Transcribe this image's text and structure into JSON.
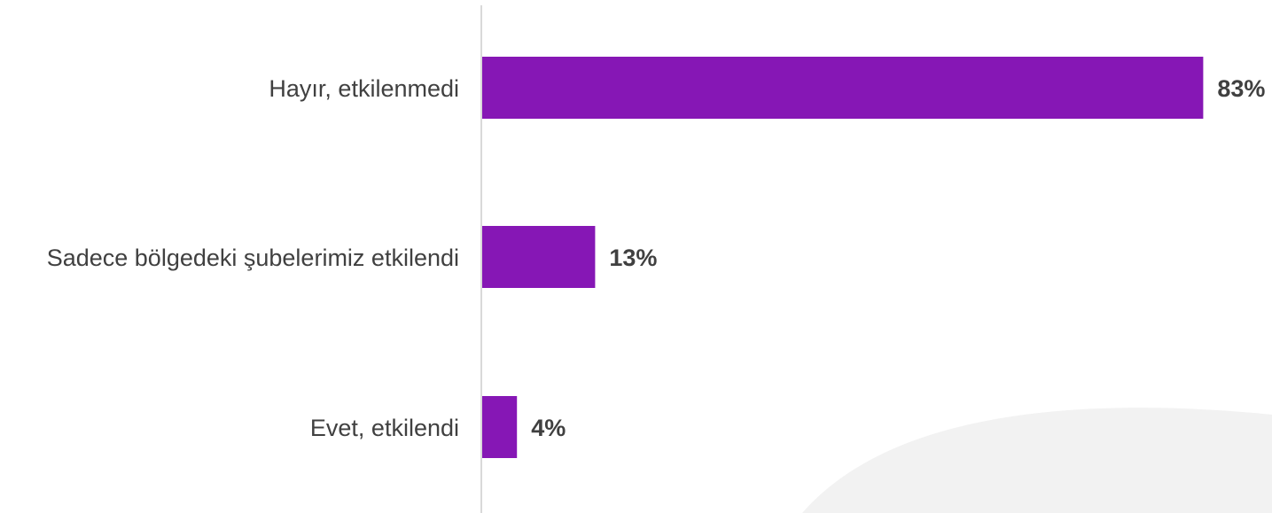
{
  "chart_data": {
    "type": "bar",
    "orientation": "horizontal",
    "categories": [
      "Hayır, etkilenmedi",
      "Sadece bölgedeki şubelerimiz etkilendi",
      "Evet, etkilendi"
    ],
    "values": [
      83,
      13,
      4
    ],
    "value_labels": [
      "83%",
      "13%",
      "4%"
    ],
    "unit": "%",
    "xlim": [
      0,
      100
    ],
    "grid": false,
    "legend": "none",
    "bar_color": "#8617B5",
    "background_shape_color": "#F2F2F2"
  }
}
